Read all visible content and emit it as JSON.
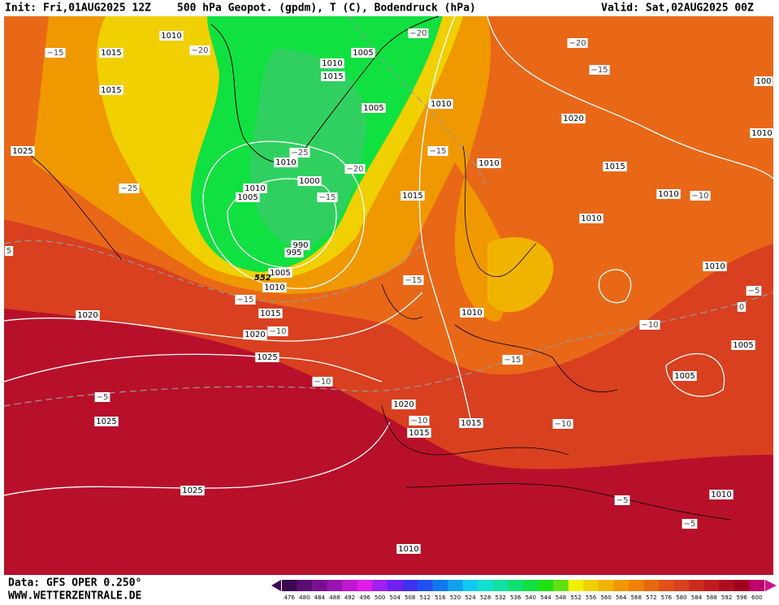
{
  "header": {
    "init": "Init: Fri,01AUG2025 12Z",
    "title": "500 hPa Geopot. (gpdm), T (C), Bodendruck (hPa)",
    "valid": "Valid: Sat,02AUG2025 00Z"
  },
  "footer": {
    "data": "Data: GFS OPER 0.250°",
    "site": "WWW.WETTERZENTRALE.DE"
  },
  "colorbar": {
    "ticks": [
      476,
      480,
      484,
      488,
      492,
      496,
      500,
      504,
      508,
      512,
      516,
      520,
      524,
      528,
      532,
      536,
      540,
      544,
      548,
      552,
      556,
      560,
      564,
      568,
      572,
      576,
      580,
      584,
      588,
      592,
      596,
      600
    ],
    "colors": [
      "#3c0850",
      "#5a0c70",
      "#7a1090",
      "#9a14b0",
      "#c018d0",
      "#e01ce8",
      "#a020f0",
      "#7020f0",
      "#4030f0",
      "#2050f0",
      "#1078f0",
      "#10a0f0",
      "#10c8f0",
      "#10e0d0",
      "#10e0a0",
      "#10e070",
      "#10e040",
      "#20e010",
      "#60e010",
      "#f0f000",
      "#f0d000",
      "#f0b400",
      "#f09800",
      "#f08000",
      "#e86810",
      "#e05018",
      "#d84020",
      "#cc2c20",
      "#c01c20",
      "#b00c20",
      "#a00020",
      "#c0006a"
    ]
  },
  "map": {
    "isobar_labels": [
      "1010",
      "1015",
      "1015",
      "1025",
      "1010",
      "1005",
      "1015",
      "1005",
      "1010",
      "1010",
      "1000",
      "1010",
      "1005",
      "990",
      "995",
      "1005",
      "1010",
      "1015",
      "1020",
      "1025",
      "1020",
      "1025",
      "1025",
      "1020",
      "1015",
      "1015",
      "1015",
      "1010",
      "1015",
      "1020",
      "1010",
      "1010",
      "1010",
      "1010",
      "1005",
      "1005",
      "1010",
      "1010",
      "1010",
      "100"
    ],
    "temperature_labels": [
      "−15",
      "−20",
      "−20",
      "−20",
      "−15",
      "−25",
      "−25",
      "−20",
      "−15",
      "−15",
      "−10",
      "−15",
      "−15",
      "−10",
      "−10",
      "−5",
      "−10",
      "−15",
      "−10",
      "−10",
      "−5",
      "−5",
      "−5",
      "0",
      "5"
    ],
    "contour_label": "552"
  }
}
